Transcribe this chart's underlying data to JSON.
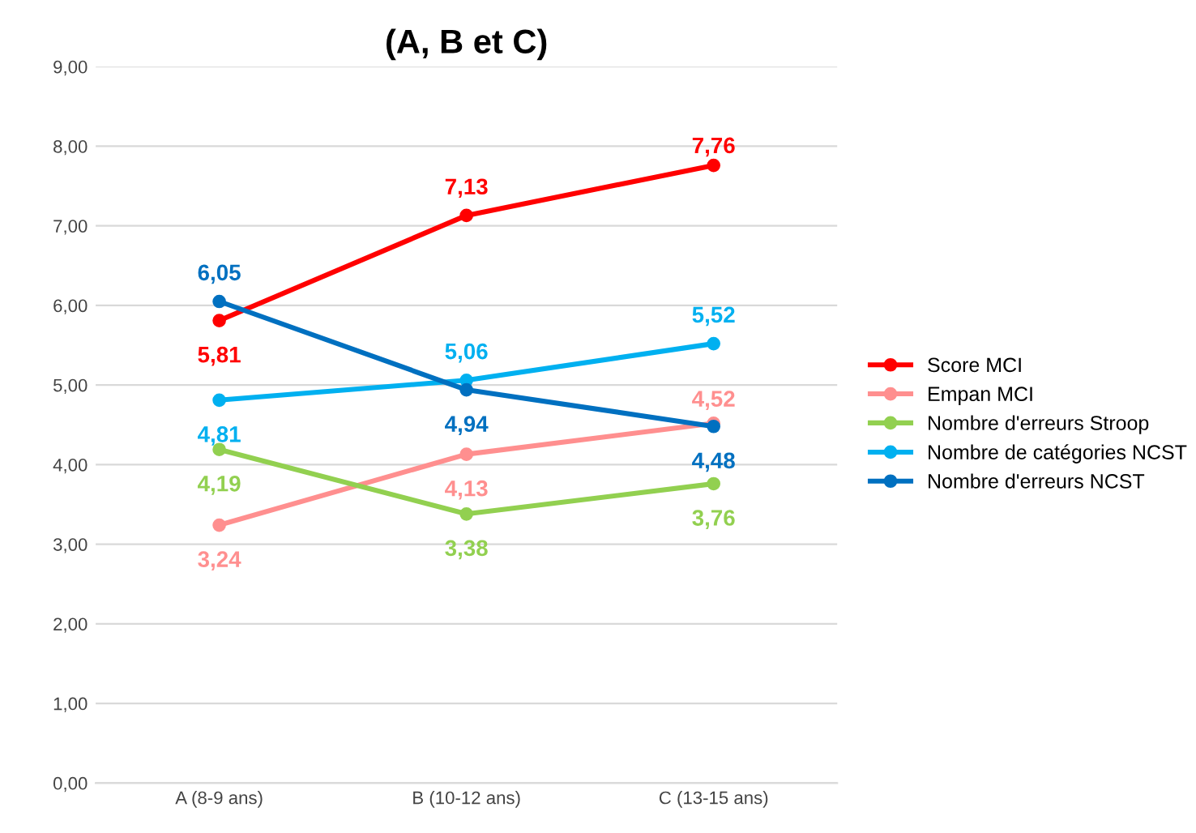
{
  "chart_data": {
    "type": "line",
    "title": "(A, B et C)",
    "categories": [
      "A (8-9 ans)",
      "B (10-12 ans)",
      "C (13-15 ans)"
    ],
    "series": [
      {
        "name": "Score MCI",
        "color": "#ff0000",
        "values": [
          5.81,
          7.13,
          7.76
        ],
        "value_labels": [
          "5,81",
          "7,13",
          "7,76"
        ]
      },
      {
        "name": "Empan MCI",
        "color": "#ff8f8f",
        "values": [
          3.24,
          4.13,
          4.52
        ],
        "value_labels": [
          "3,24",
          "4,13",
          "4,52"
        ]
      },
      {
        "name": "Nombre d'erreurs Stroop",
        "color": "#92d050",
        "values": [
          4.19,
          3.38,
          3.76
        ],
        "value_labels": [
          "4,19",
          "3,38",
          "3,76"
        ]
      },
      {
        "name": "Nombre de catégories NCST",
        "color": "#00b0f0",
        "values": [
          4.81,
          5.06,
          5.52
        ],
        "value_labels": [
          "4,81",
          "5,06",
          "5,52"
        ]
      },
      {
        "name": "Nombre d'erreurs NCST",
        "color": "#0070c0",
        "values": [
          6.05,
          4.94,
          4.48
        ],
        "value_labels": [
          "6,05",
          "4,94",
          "4,48"
        ]
      }
    ],
    "ylim": [
      0,
      9
    ],
    "yticks": [
      {
        "value": 0,
        "label": "0,00"
      },
      {
        "value": 1,
        "label": "1,00"
      },
      {
        "value": 2,
        "label": "2,00"
      },
      {
        "value": 3,
        "label": "3,00"
      },
      {
        "value": 4,
        "label": "4,00"
      },
      {
        "value": 5,
        "label": "5,00"
      },
      {
        "value": 6,
        "label": "6,00"
      },
      {
        "value": 7,
        "label": "7,00"
      },
      {
        "value": 8,
        "label": "8,00"
      },
      {
        "value": 9,
        "label": "9,00"
      }
    ],
    "grid": "y",
    "legend": "right",
    "marker": "circle",
    "line_style": "solid"
  }
}
